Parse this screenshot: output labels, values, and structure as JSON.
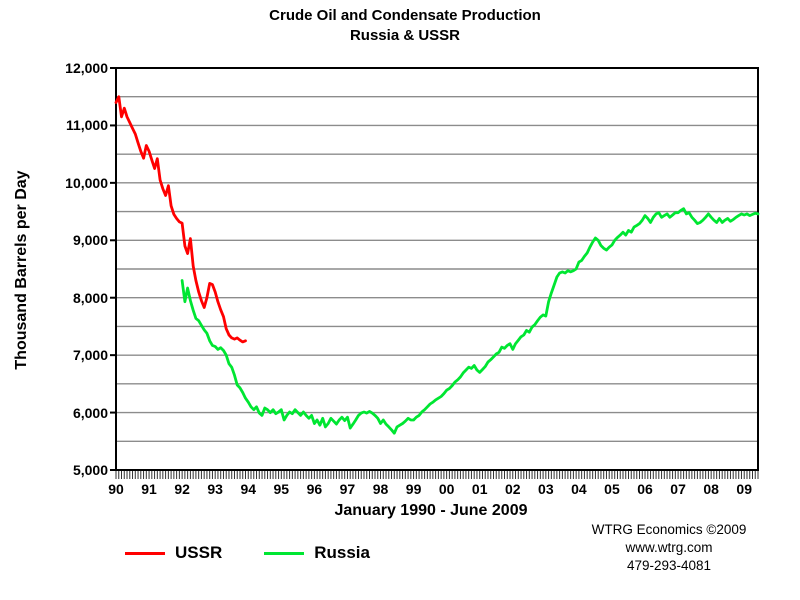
{
  "title": {
    "line1": "Crude Oil and Condensate Production",
    "line2": "Russia & USSR"
  },
  "y_axis": {
    "label": "Thousand Barrels per Day",
    "tick_labels": [
      "12,000",
      "11,000",
      "10,000",
      "9,000",
      "8,000",
      "7,000",
      "6,000",
      "5,000"
    ],
    "tick_values": [
      12000,
      11000,
      10000,
      9000,
      8000,
      7000,
      6000,
      5000
    ]
  },
  "x_axis": {
    "label": "January 1990 - June 2009",
    "tick_labels": [
      "90",
      "91",
      "92",
      "93",
      "94",
      "95",
      "96",
      "97",
      "98",
      "99",
      "00",
      "01",
      "02",
      "03",
      "04",
      "05",
      "06",
      "07",
      "08",
      "09"
    ]
  },
  "legend": {
    "items": [
      {
        "label": "USSR",
        "color": "#ff0000"
      },
      {
        "label": "Russia",
        "color": "#00e632"
      }
    ]
  },
  "attribution": {
    "line1": "WTRG Economics  ©2009",
    "line2": "www.wtrg.com",
    "line3": "479-293-4081"
  },
  "colors": {
    "axis": "#000000",
    "gridline": "#8c8c8c",
    "ussr": "#ff0000",
    "russia": "#00e632"
  },
  "chart_data": {
    "type": "line",
    "title": "Crude Oil and Condensate Production - Russia & USSR",
    "xlabel": "January 1990 - June 2009",
    "ylabel": "Thousand Barrels per Day",
    "ylim": [
      5000,
      12000
    ],
    "grid_step": 500,
    "x_unit": "month",
    "x_range_years": [
      1990.0,
      2009.5
    ],
    "legend_position": "bottom-left",
    "grid": true,
    "series": [
      {
        "name": "USSR",
        "color": "#ff0000",
        "start_year": 1990,
        "start_month": 1,
        "values": [
          11400,
          11500,
          11150,
          11300,
          11150,
          11050,
          10950,
          10850,
          10700,
          10550,
          10430,
          10650,
          10550,
          10400,
          10250,
          10420,
          10050,
          9900,
          9780,
          9950,
          9600,
          9450,
          9380,
          9320,
          9300,
          8900,
          8770,
          9030,
          8550,
          8300,
          8100,
          7950,
          7830,
          8000,
          8250,
          8230,
          8100,
          7930,
          7790,
          7670,
          7460,
          7350,
          7300,
          7280,
          7300,
          7260,
          7230,
          7250
        ]
      },
      {
        "name": "Russia",
        "color": "#00e632",
        "start_year": 1992,
        "start_month": 1,
        "values": [
          8300,
          7930,
          8170,
          7950,
          7780,
          7640,
          7600,
          7520,
          7440,
          7380,
          7250,
          7170,
          7150,
          7100,
          7130,
          7080,
          7000,
          6850,
          6790,
          6650,
          6480,
          6430,
          6350,
          6250,
          6180,
          6100,
          6050,
          6100,
          5990,
          5950,
          6080,
          6050,
          6000,
          6050,
          5980,
          6010,
          6050,
          5870,
          5950,
          6010,
          5980,
          6050,
          6000,
          5950,
          6010,
          5950,
          5900,
          5950,
          5810,
          5870,
          5780,
          5900,
          5750,
          5810,
          5900,
          5850,
          5800,
          5870,
          5920,
          5860,
          5920,
          5730,
          5800,
          5870,
          5950,
          5990,
          6010,
          5990,
          6020,
          5990,
          5950,
          5900,
          5810,
          5870,
          5800,
          5750,
          5700,
          5640,
          5750,
          5780,
          5810,
          5850,
          5900,
          5870,
          5870,
          5920,
          5950,
          6010,
          6050,
          6100,
          6150,
          6180,
          6220,
          6250,
          6280,
          6330,
          6390,
          6420,
          6470,
          6530,
          6570,
          6620,
          6690,
          6740,
          6790,
          6770,
          6820,
          6740,
          6700,
          6750,
          6800,
          6880,
          6920,
          6970,
          7020,
          7050,
          7140,
          7120,
          7170,
          7200,
          7100,
          7200,
          7260,
          7320,
          7350,
          7430,
          7400,
          7490,
          7530,
          7600,
          7660,
          7700,
          7680,
          7930,
          8080,
          8220,
          8360,
          8430,
          8450,
          8430,
          8470,
          8450,
          8470,
          8500,
          8620,
          8650,
          8720,
          8780,
          8880,
          8970,
          9040,
          9000,
          8910,
          8860,
          8830,
          8880,
          8920,
          9000,
          9050,
          9090,
          9140,
          9090,
          9170,
          9140,
          9230,
          9260,
          9290,
          9350,
          9430,
          9380,
          9310,
          9400,
          9460,
          9480,
          9400,
          9430,
          9460,
          9400,
          9440,
          9480,
          9480,
          9520,
          9550,
          9460,
          9480,
          9400,
          9350,
          9290,
          9310,
          9350,
          9400,
          9460,
          9400,
          9350,
          9310,
          9380,
          9310,
          9350,
          9380,
          9330,
          9360,
          9400,
          9430,
          9460,
          9440,
          9460,
          9430,
          9450,
          9470,
          9460
        ]
      }
    ]
  }
}
